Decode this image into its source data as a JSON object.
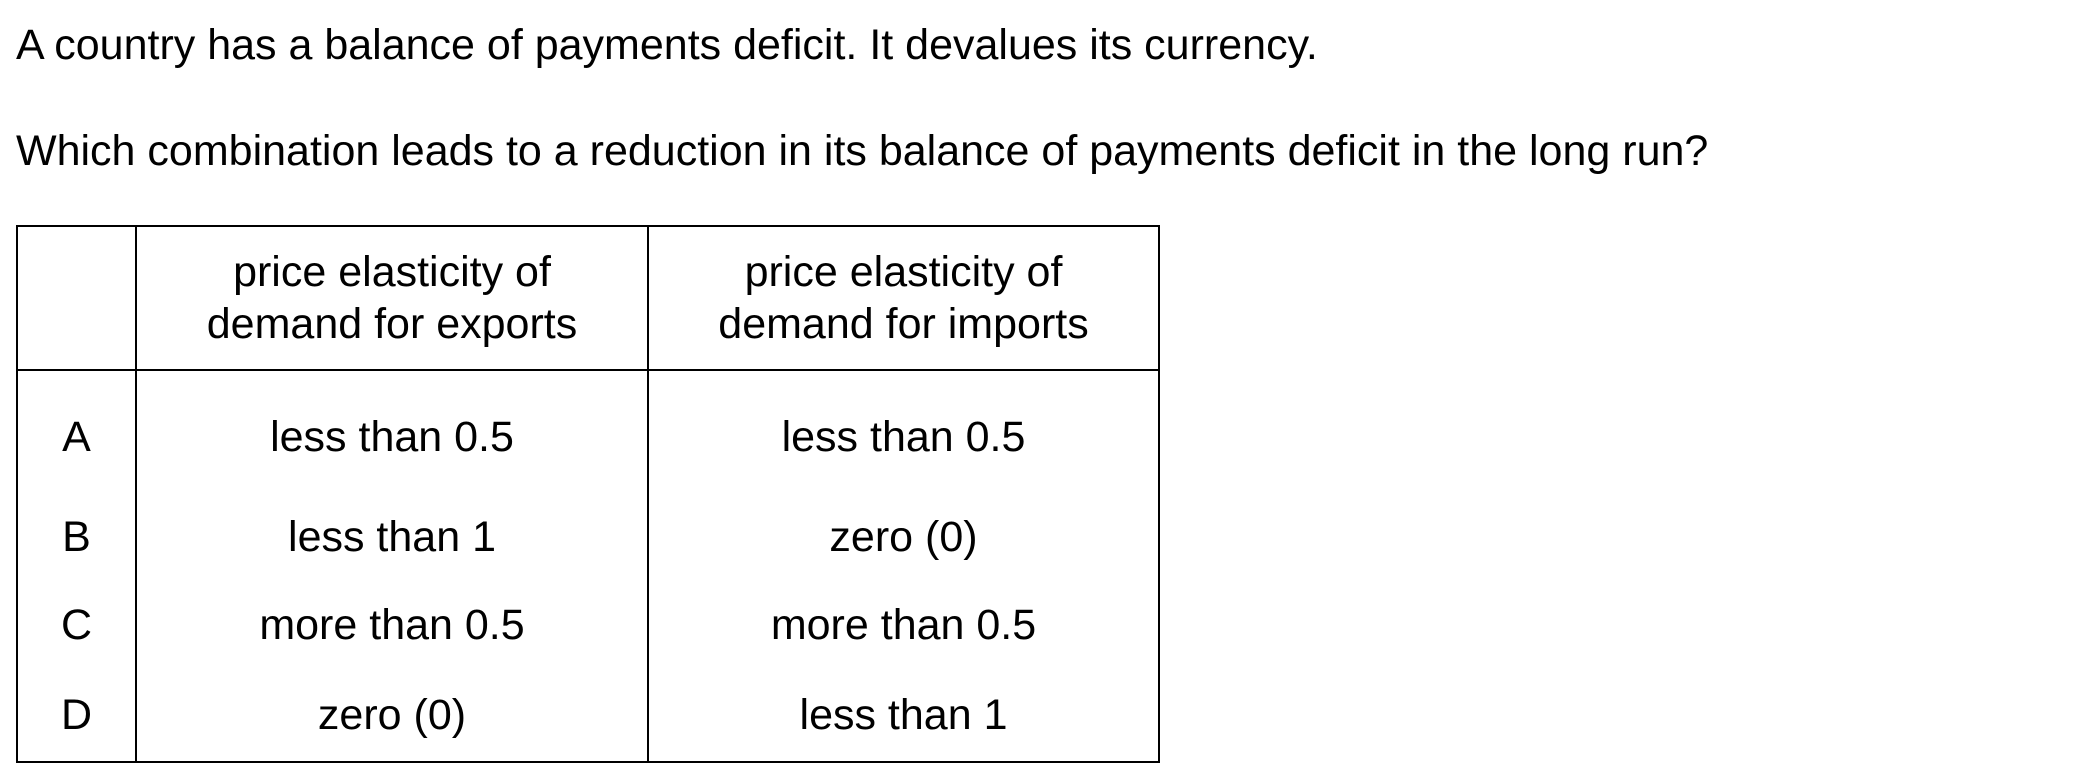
{
  "question": {
    "line1": "A country has a balance of payments deficit. It devalues its currency.",
    "line2": "Which combination leads to a reduction in its balance of payments deficit in the long run?"
  },
  "table": {
    "headers": {
      "letter": "",
      "exports": [
        "price elasticity of",
        "demand for exports"
      ],
      "imports": [
        "price elasticity of",
        "demand for imports"
      ]
    },
    "rows": [
      {
        "letter": "A",
        "exports": "less than 0.5",
        "imports": "less than 0.5"
      },
      {
        "letter": "B",
        "exports": "less than 1",
        "imports": "zero (0)"
      },
      {
        "letter": "C",
        "exports": "more than 0.5",
        "imports": "more than 0.5"
      },
      {
        "letter": "D",
        "exports": "zero (0)",
        "imports": "less than 1"
      }
    ]
  }
}
